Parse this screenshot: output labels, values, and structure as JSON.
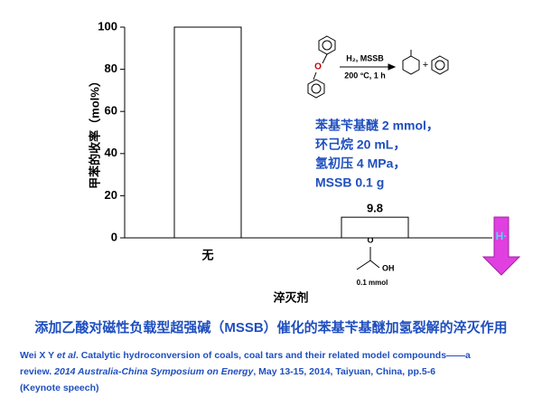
{
  "chart_data": {
    "type": "bar",
    "y_label": "甲苯的收率（mol%）",
    "x_label": "淬灭剂",
    "categories": [
      "无",
      null
    ],
    "values": [
      100,
      9.8
    ],
    "color": "#ffffff",
    "ylim": [
      0,
      100
    ],
    "yticks": [
      0,
      20,
      40,
      60,
      80,
      100
    ],
    "structure": {
      "o": "O",
      "oh": "OH",
      "amount": "0.1 mmol"
    },
    "scheme": {
      "ether_o": "O",
      "reagent": "H₂, MSSB",
      "conditions": "200 °C, 1 h",
      "plus": "+"
    },
    "conditions_note": [
      "苯基苄基醚 2 mmol，",
      "环己烷 20 mL，",
      "氢初压 4 MPa，",
      "MSSB 0.1 g"
    ],
    "arrow_label": "H·"
  },
  "caption": "添加乙酸对磁性负载型超强碱（MSSB）催化的苯基苄基醚加氢裂解的淬灭作用",
  "reference": [
    [
      "Wei X Y ",
      "et al",
      ". Catalytic hydroconversion of coals, coal tars and their related model compounds——a"
    ],
    [
      "review. ",
      "2014 Australia-China Symposium on Energy",
      ", May 13-15, 2014, Taiyuan, China, pp.5-6"
    ],
    [
      "(Keynote speech)"
    ]
  ]
}
